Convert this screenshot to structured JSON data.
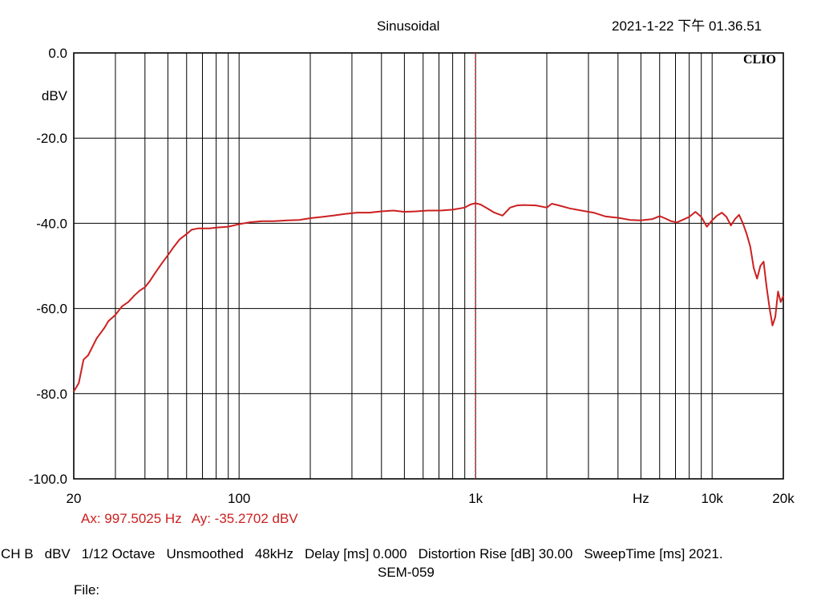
{
  "header": {
    "title": "Sinusoidal",
    "timestamp": "2021-1-22 下午 01.36.51"
  },
  "brand": "CLIO",
  "cursor": {
    "ax": "Ax: 997.5025 Hz",
    "ay": "Ay: -35.2702 dBV"
  },
  "footer": {
    "params": [
      "CH B",
      "dBV",
      "1/12 Octave",
      "Unsmoothed",
      "48kHz",
      "Delay [ms] 0.000",
      "Distortion Rise [dB] 30.00",
      "SweepTime [ms] 2021."
    ],
    "model": "SEM-059",
    "file_label": "File:"
  },
  "colors": {
    "trace": "#cc2020",
    "cursor": "#cc2020",
    "grid": "#000000"
  },
  "chart_data": {
    "type": "line",
    "title": "Sinusoidal",
    "xscale": "log",
    "xlim": [
      20,
      20000
    ],
    "ylim": [
      -100,
      0
    ],
    "grid": true,
    "y_ticks": [
      {
        "value": 0,
        "label": "0.0"
      },
      {
        "value": -10,
        "label": "dBV"
      },
      {
        "value": -20,
        "label": "-20.0"
      },
      {
        "value": -40,
        "label": "-40.0"
      },
      {
        "value": -60,
        "label": "-60.0"
      },
      {
        "value": -80,
        "label": "-80.0"
      },
      {
        "value": -100,
        "label": "-100.0"
      }
    ],
    "x_ticks": [
      {
        "value": 20,
        "label": "20"
      },
      {
        "value": 100,
        "label": "100"
      },
      {
        "value": 1000,
        "label": "1k"
      },
      {
        "value": 5000,
        "label": "Hz"
      },
      {
        "value": 10000,
        "label": "10k"
      },
      {
        "value": 20000,
        "label": "20k"
      }
    ],
    "cursor_x": 997.5,
    "series": [
      {
        "x": [
          20,
          21,
          22,
          23,
          25,
          27,
          28,
          30,
          32,
          34,
          36,
          38,
          40,
          42,
          44,
          47,
          50,
          53,
          56,
          60,
          63,
          67,
          71,
          75,
          80,
          90,
          100,
          110,
          125,
          140,
          160,
          180,
          200,
          225,
          250,
          280,
          315,
          355,
          400,
          450,
          500,
          560,
          630,
          710,
          800,
          900,
          950,
          1000,
          1050,
          1120,
          1200,
          1300,
          1400,
          1500,
          1600,
          1800,
          2000,
          2100,
          2250,
          2500,
          2800,
          3150,
          3550,
          4000,
          4500,
          5000,
          5600,
          6000,
          6300,
          6700,
          7100,
          7500,
          8000,
          8500,
          9000,
          9500,
          10000,
          10500,
          11000,
          11500,
          12000,
          12500,
          13000,
          13500,
          14000,
          14500,
          15000,
          15500,
          16000,
          16500,
          17000,
          17500,
          18000,
          18500,
          19000,
          19500,
          20000
        ],
        "y": [
          -79.5,
          -77.5,
          -72,
          -71,
          -67,
          -64.5,
          -63,
          -61.5,
          -59.5,
          -58.5,
          -57,
          -55.8,
          -55,
          -53.5,
          -51.8,
          -49.5,
          -47.5,
          -45.5,
          -43.8,
          -42.5,
          -41.5,
          -41.2,
          -41.2,
          -41.2,
          -41,
          -40.8,
          -40.2,
          -39.8,
          -39.5,
          -39.5,
          -39.3,
          -39.2,
          -38.8,
          -38.5,
          -38.2,
          -37.8,
          -37.5,
          -37.5,
          -37.2,
          -37.0,
          -37.3,
          -37.2,
          -37.0,
          -37.0,
          -36.8,
          -36.3,
          -35.6,
          -35.3,
          -35.6,
          -36.5,
          -37.5,
          -38.2,
          -36.3,
          -35.8,
          -35.7,
          -35.8,
          -36.3,
          -35.4,
          -35.8,
          -36.5,
          -37.0,
          -37.5,
          -38.4,
          -38.7,
          -39.2,
          -39.3,
          -39.0,
          -38.3,
          -38.8,
          -39.5,
          -39.8,
          -39.2,
          -38.5,
          -37.3,
          -38.5,
          -40.8,
          -39.3,
          -38.2,
          -37.5,
          -38.5,
          -40.5,
          -39.0,
          -38.0,
          -40.0,
          -42.5,
          -45.5,
          -50.5,
          -53.0,
          -50.0,
          -49.0,
          -55.0,
          -60.0,
          -64.0,
          -62.0,
          -56.0,
          -58.5,
          -57.0
        ]
      }
    ]
  }
}
